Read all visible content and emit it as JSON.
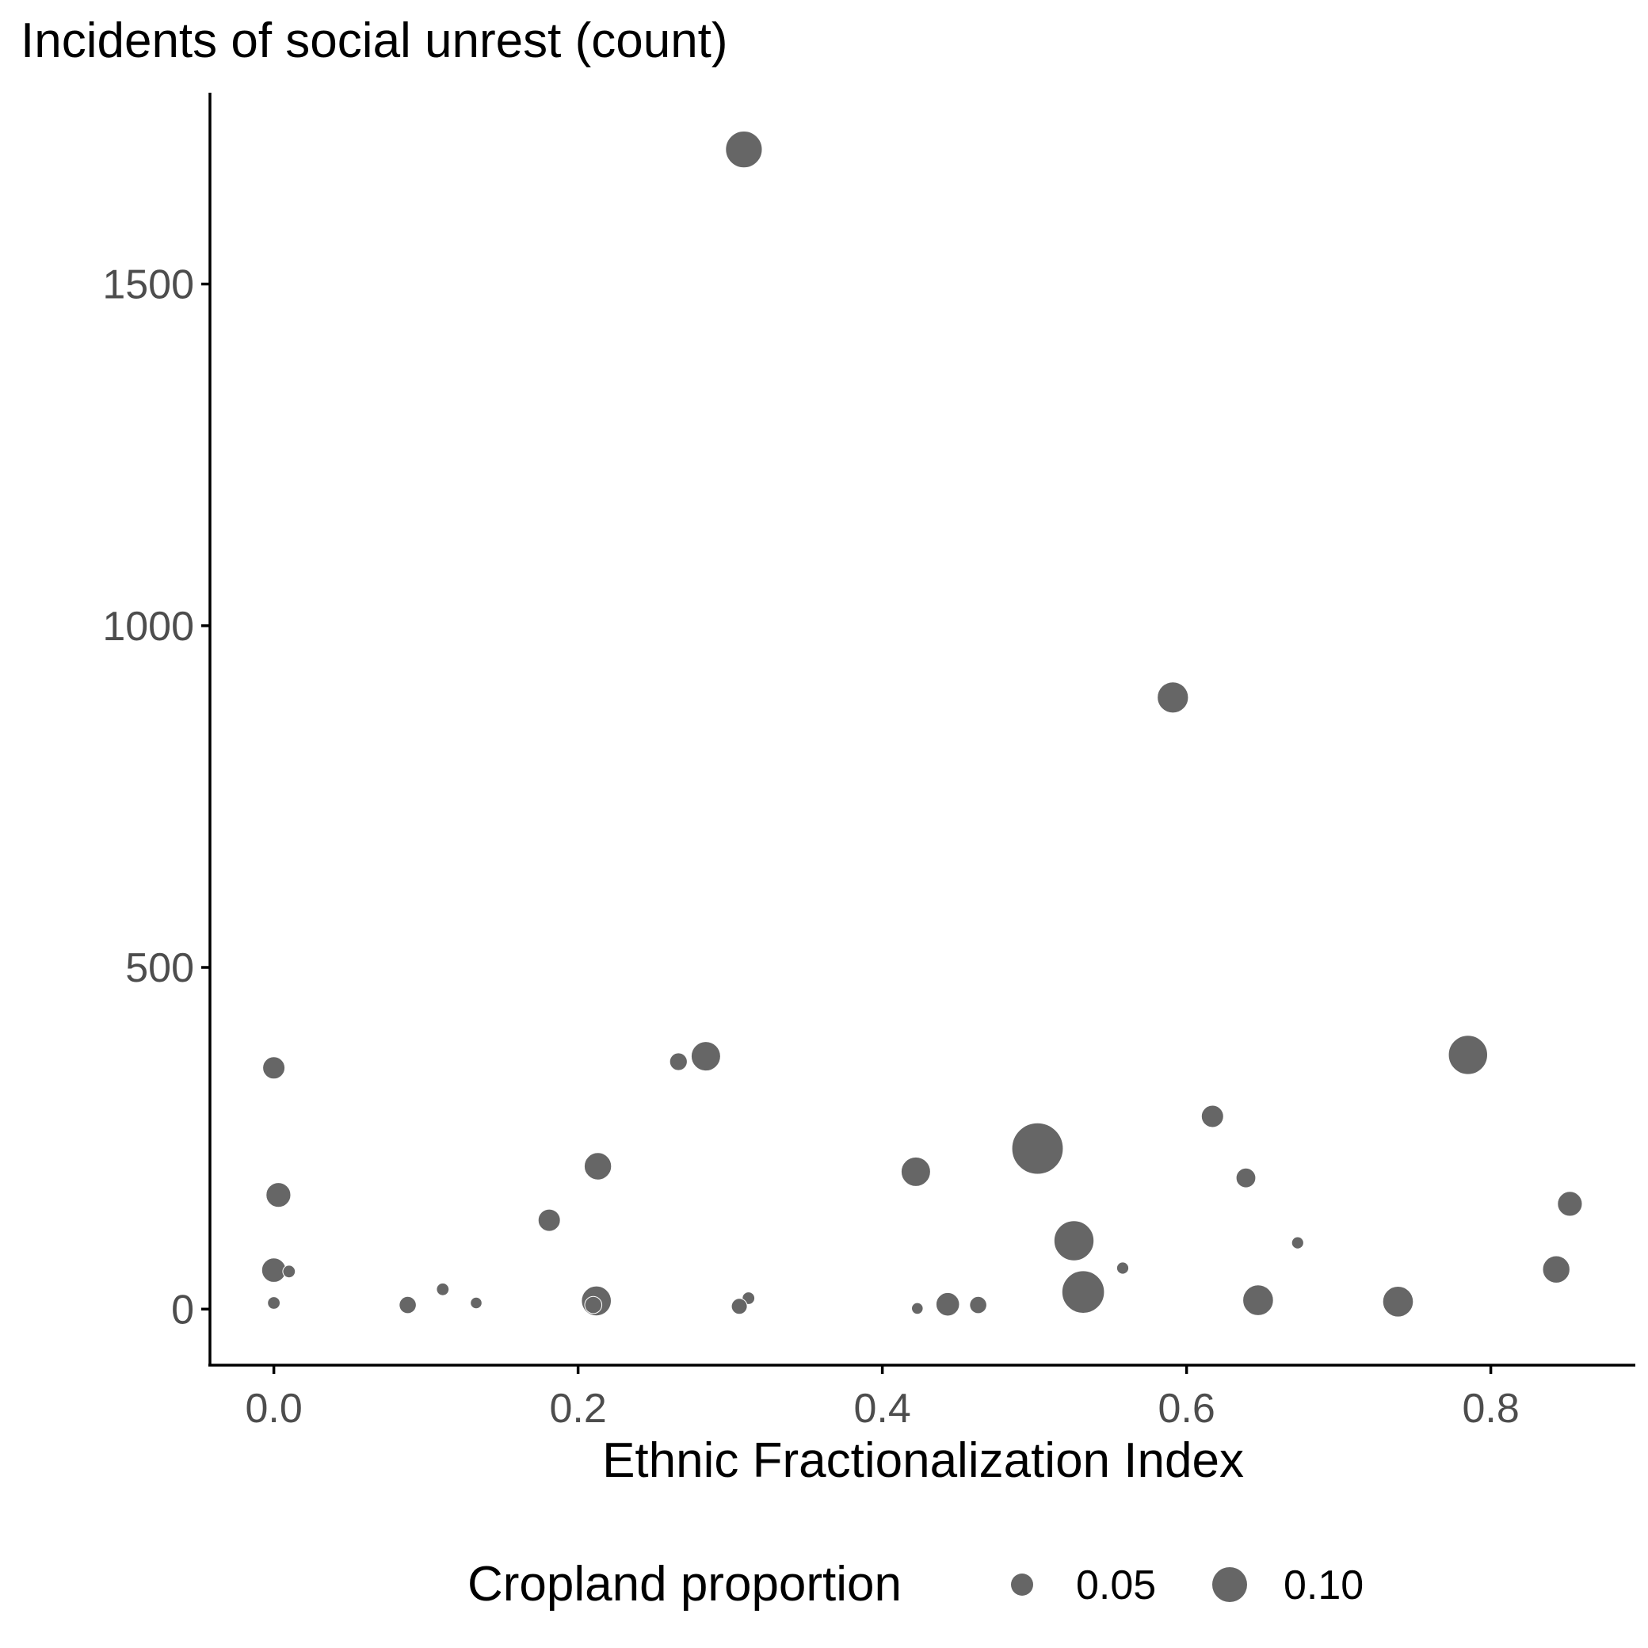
{
  "chart_data": {
    "type": "scatter",
    "title": "Incidents of social unrest (count)",
    "xlabel": "Ethnic Fractionalization Index",
    "ylabel": "",
    "xlim": [
      -0.042,
      0.895
    ],
    "ylim": [
      -82,
      1780
    ],
    "x_ticks": [
      0.0,
      0.2,
      0.4,
      0.6,
      0.8
    ],
    "x_tick_labels": [
      "0.0",
      "0.2",
      "0.4",
      "0.6",
      "0.8"
    ],
    "y_ticks": [
      0,
      500,
      1000,
      1500
    ],
    "y_tick_labels": [
      "0",
      "500",
      "1000",
      "1500"
    ],
    "grid": false,
    "point_color": "#666666",
    "size_legend": {
      "title": "Cropland proportion",
      "position": "bottom",
      "entries": [
        {
          "label": "0.05",
          "value": 0.05
        },
        {
          "label": "0.10",
          "value": 0.1
        }
      ]
    },
    "points": [
      {
        "x": 0.309,
        "y": 1697,
        "size": 0.107
      },
      {
        "x": 0.591,
        "y": 895,
        "size": 0.085
      },
      {
        "x": 0.0,
        "y": 353,
        "size": 0.05
      },
      {
        "x": 0.266,
        "y": 362,
        "size": 0.032
      },
      {
        "x": 0.284,
        "y": 370,
        "size": 0.078
      },
      {
        "x": 0.785,
        "y": 372,
        "size": 0.117
      },
      {
        "x": 0.617,
        "y": 282,
        "size": 0.05
      },
      {
        "x": 0.502,
        "y": 235,
        "size": 0.165
      },
      {
        "x": 0.213,
        "y": 209,
        "size": 0.07
      },
      {
        "x": 0.422,
        "y": 201,
        "size": 0.078
      },
      {
        "x": 0.639,
        "y": 192,
        "size": 0.04
      },
      {
        "x": 0.003,
        "y": 167,
        "size": 0.06
      },
      {
        "x": 0.852,
        "y": 154,
        "size": 0.06
      },
      {
        "x": 0.181,
        "y": 130,
        "size": 0.05
      },
      {
        "x": 0.526,
        "y": 100,
        "size": 0.12
      },
      {
        "x": 0.673,
        "y": 97,
        "size": 0.01
      },
      {
        "x": 0.0,
        "y": 57,
        "size": 0.058
      },
      {
        "x": 0.01,
        "y": 55,
        "size": 0.012
      },
      {
        "x": 0.558,
        "y": 60,
        "size": 0.01
      },
      {
        "x": 0.843,
        "y": 58,
        "size": 0.07
      },
      {
        "x": 0.111,
        "y": 29,
        "size": 0.012
      },
      {
        "x": 0.532,
        "y": 25,
        "size": 0.13
      },
      {
        "x": 0.212,
        "y": 12,
        "size": 0.08
      },
      {
        "x": 0.312,
        "y": 16,
        "size": 0.012
      },
      {
        "x": 0.647,
        "y": 13,
        "size": 0.083
      },
      {
        "x": 0.739,
        "y": 11,
        "size": 0.083
      },
      {
        "x": 0.0,
        "y": 9,
        "size": 0.012
      },
      {
        "x": 0.133,
        "y": 9,
        "size": 0.008
      },
      {
        "x": 0.088,
        "y": 6,
        "size": 0.03
      },
      {
        "x": 0.21,
        "y": 6,
        "size": 0.03
      },
      {
        "x": 0.306,
        "y": 4,
        "size": 0.025
      },
      {
        "x": 0.443,
        "y": 7,
        "size": 0.055
      },
      {
        "x": 0.463,
        "y": 6,
        "size": 0.03
      },
      {
        "x": 0.423,
        "y": 1,
        "size": 0.008
      }
    ]
  }
}
